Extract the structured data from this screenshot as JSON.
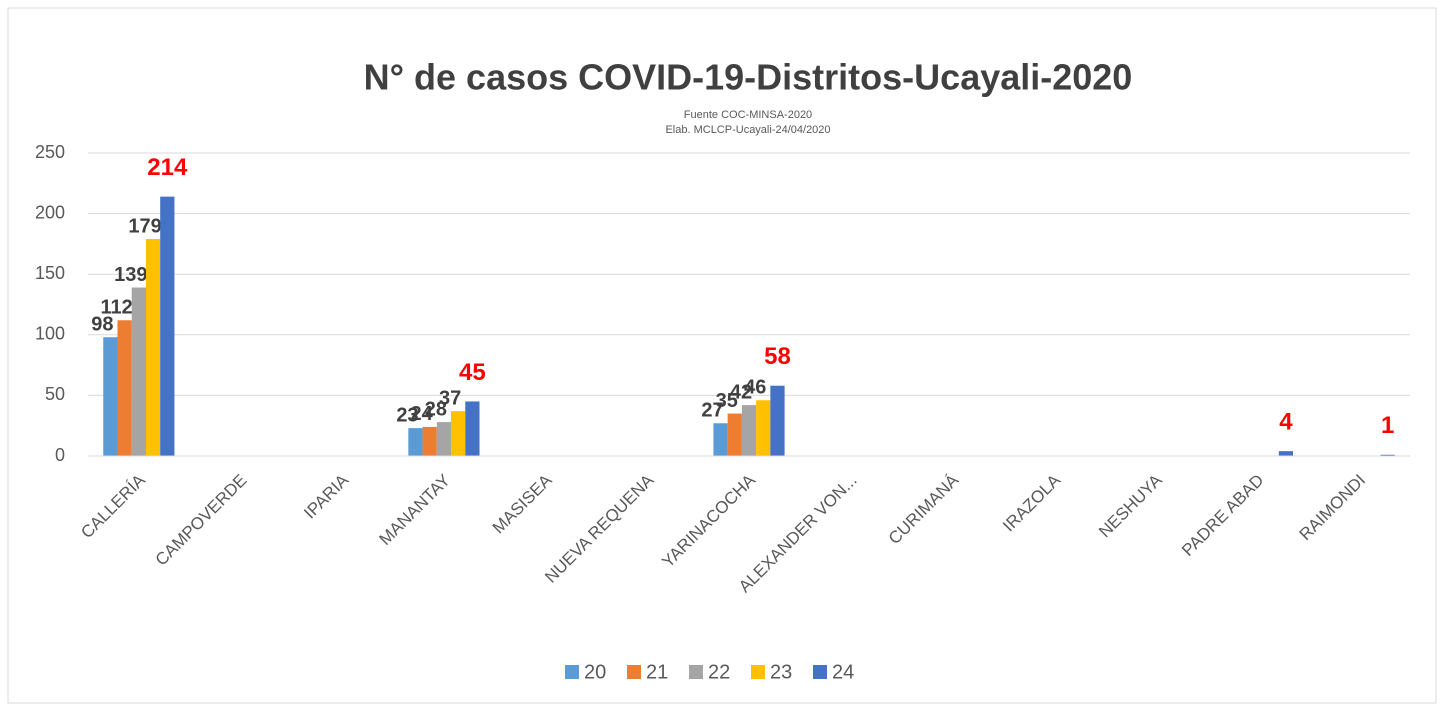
{
  "chart_data": {
    "type": "bar",
    "title": "N° de casos COVID-19-Distritos-Ucayali-2020",
    "subtitle": [
      "Fuente COC-MINSA-2020",
      "Elab. MCLCP-Ucayali-24/04/2020"
    ],
    "categories": [
      "CALLERÍA",
      "CAMPOVERDE",
      "IPARIA",
      "MANANTAY",
      "MASISEA",
      "NUEVA REQUENA",
      "YARINACOCHA",
      "ALEXANDER VON...",
      "CURIMANÁ",
      "IRAZOLA",
      "NESHUYA",
      "PADRE ABAD",
      "RAIMONDI"
    ],
    "series": [
      {
        "name": "20",
        "color": "#5b9bd5",
        "label_color": "#404040",
        "values": [
          98,
          0,
          0,
          23,
          0,
          0,
          27,
          0,
          0,
          0,
          0,
          0,
          0
        ]
      },
      {
        "name": "21",
        "color": "#ed7d31",
        "label_color": "#404040",
        "values": [
          112,
          0,
          0,
          24,
          0,
          0,
          35,
          0,
          0,
          0,
          0,
          0,
          0
        ]
      },
      {
        "name": "22",
        "color": "#a5a5a5",
        "label_color": "#404040",
        "values": [
          139,
          0,
          0,
          28,
          0,
          0,
          42,
          0,
          0,
          0,
          0,
          0,
          0
        ]
      },
      {
        "name": "23",
        "color": "#ffc000",
        "label_color": "#404040",
        "values": [
          179,
          0,
          0,
          37,
          0,
          0,
          46,
          0,
          0,
          0,
          0,
          0,
          0
        ]
      },
      {
        "name": "24",
        "color": "#4472c4",
        "label_color": "#ff0000",
        "values": [
          214,
          0,
          0,
          45,
          0,
          0,
          58,
          0,
          0,
          0,
          0,
          4,
          1
        ]
      }
    ],
    "ylim": [
      0,
      250
    ],
    "yticks": [
      0,
      50,
      100,
      150,
      200,
      250
    ],
    "grid": true,
    "legend": "bottom"
  }
}
